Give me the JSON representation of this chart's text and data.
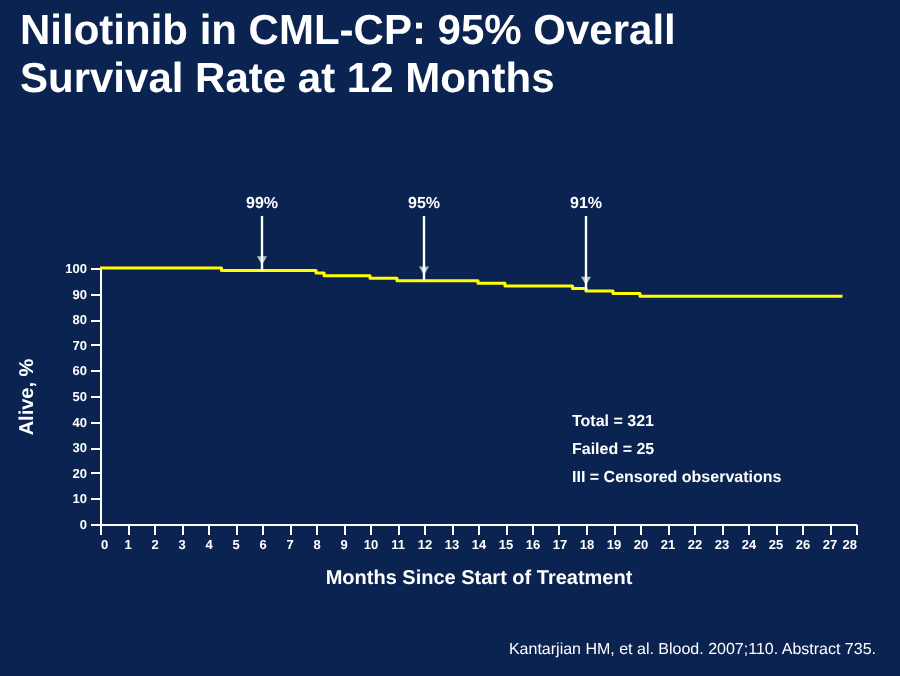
{
  "chart_data": {
    "type": "step",
    "title": "Nilotinib in CML-CP: 95% Overall Survival Rate at 12 Months",
    "xlabel": "Months Since Start of Treatment",
    "ylabel": "Alive, %",
    "x": [
      0,
      4.5,
      8,
      8.3,
      10,
      11,
      14,
      15,
      17.5,
      18,
      19,
      20,
      27.5
    ],
    "series": [
      {
        "color": "#ffff00",
        "values": [
          100,
          99,
          98,
          97,
          96,
          95,
          94,
          93,
          92,
          91,
          90,
          89,
          89
        ]
      }
    ],
    "xlim": [
      0,
      28
    ],
    "xticks": [
      0,
      1,
      2,
      3,
      4,
      5,
      6,
      7,
      8,
      9,
      10,
      11,
      12,
      13,
      14,
      15,
      16,
      17,
      18,
      19,
      20,
      21,
      22,
      23,
      24,
      25,
      26,
      27,
      28
    ],
    "ylim": [
      0,
      100
    ],
    "yticks": [
      0,
      10,
      20,
      30,
      40,
      50,
      60,
      70,
      80,
      90,
      100
    ],
    "grid": false,
    "legend": false,
    "annotations": [
      {
        "text": "99%",
        "x": 6,
        "y": 99
      },
      {
        "text": "95%",
        "x": 12,
        "y": 95
      },
      {
        "text": "91%",
        "x": 18,
        "y": 91
      },
      "Total = 321",
      "Failed = 25",
      "III = Censored observations",
      "Kantarjian HM, et al. Blood. 2007;110. Abstract 735."
    ]
  }
}
